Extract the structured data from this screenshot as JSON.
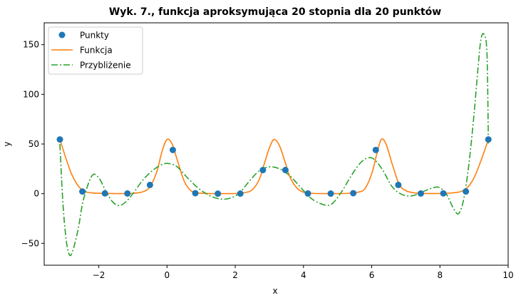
{
  "chart_data": {
    "type": "line",
    "title": "Wyk. 7., funkcja aproksymująca 20 stopnia dla 20 punktów",
    "xlabel": "x",
    "ylabel": "y",
    "xlim": [
      -3.6,
      10.0
    ],
    "ylim": [
      -72,
      172
    ],
    "grid": false,
    "legend_position": "top-left",
    "x_ticks": [
      -2,
      0,
      2,
      4,
      6,
      8,
      10
    ],
    "y_ticks": [
      -50,
      0,
      50,
      100,
      150
    ],
    "x_tick_labels": [
      "−2",
      "0",
      "2",
      "4",
      "6",
      "8",
      "10"
    ],
    "y_tick_labels": [
      "−50",
      "0",
      "50",
      "100",
      "150"
    ],
    "series": [
      {
        "name": "Punkty",
        "kind": "scatter",
        "color": "#1f77b4",
        "x": [
          -3.14,
          -2.48,
          -1.82,
          -1.16,
          -0.5,
          0.17,
          0.83,
          1.49,
          2.15,
          2.81,
          3.47,
          4.13,
          4.8,
          5.46,
          6.12,
          6.78,
          7.44,
          8.1,
          8.76,
          9.42
        ],
        "y": [
          54.6,
          2.2,
          0.3,
          0.2,
          8.8,
          44.0,
          0.5,
          0.0,
          0.1,
          23.8,
          23.8,
          0.2,
          0.1,
          0.5,
          44.0,
          8.8,
          0.2,
          0.3,
          2.2,
          54.6
        ]
      },
      {
        "name": "Funkcja",
        "kind": "line",
        "color": "#ff7f0e",
        "x": [
          -3.14,
          -2.8,
          -2.5,
          -2.2,
          -2.0,
          -1.5,
          -1.0,
          -0.7,
          -0.5,
          -0.3,
          -0.15,
          0.0,
          0.15,
          0.3,
          0.5,
          0.7,
          0.9,
          1.2,
          1.5,
          2.0,
          2.3,
          2.5,
          2.7,
          2.85,
          3.0,
          3.14,
          3.3,
          3.45,
          3.6,
          3.8,
          4.0,
          4.3,
          4.8,
          5.3,
          5.6,
          5.8,
          6.0,
          6.15,
          6.28,
          6.42,
          6.6,
          6.8,
          7.0,
          7.3,
          7.6,
          8.0,
          8.3,
          8.6,
          8.8,
          9.0,
          9.2,
          9.42
        ],
        "y": [
          54.6,
          20,
          4,
          0.8,
          0.4,
          0.1,
          0.3,
          2,
          7,
          22,
          42,
          54.6,
          50,
          34,
          13,
          3,
          0.8,
          0.2,
          0.1,
          0.2,
          1.2,
          4,
          14,
          30,
          46,
          54.6,
          48,
          33,
          17,
          6,
          1.5,
          0.3,
          0.1,
          0.3,
          1.5,
          5,
          20,
          40,
          54.6,
          50,
          30,
          10,
          3,
          0.6,
          0.2,
          0.2,
          0.6,
          2,
          6,
          16,
          33,
          54.6
        ]
      },
      {
        "name": "Przybliżenie",
        "kind": "line",
        "dash": "dashdot",
        "color": "#2ca02c",
        "x": [
          -3.14,
          -3.05,
          -2.95,
          -2.85,
          -2.75,
          -2.6,
          -2.45,
          -2.2,
          -2.0,
          -1.8,
          -1.6,
          -1.4,
          -1.2,
          -1.0,
          -0.7,
          -0.4,
          -0.1,
          0.1,
          0.3,
          0.6,
          0.9,
          1.2,
          1.5,
          1.8,
          2.1,
          2.4,
          2.7,
          3.0,
          3.3,
          3.6,
          3.9,
          4.2,
          4.5,
          4.8,
          5.1,
          5.4,
          5.7,
          6.0,
          6.3,
          6.6,
          6.9,
          7.2,
          7.5,
          7.8,
          8.0,
          8.2,
          8.4,
          8.55,
          8.7,
          8.85,
          9.0,
          9.1,
          9.2,
          9.3,
          9.38,
          9.42
        ],
        "y": [
          50,
          -10,
          -48,
          -62,
          -56,
          -35,
          -6,
          18,
          16,
          3,
          -8,
          -12,
          -8,
          0,
          14,
          24,
          30,
          30,
          27,
          16,
          6,
          -1,
          -5,
          -5,
          0,
          12,
          23,
          27,
          25,
          18,
          7,
          -4,
          -10,
          -11,
          1,
          18,
          32,
          36,
          25,
          7,
          -1,
          -2,
          2,
          6,
          6,
          -1,
          -15,
          -20,
          -5,
          30,
          80,
          120,
          155,
          160,
          140,
          50
        ]
      }
    ]
  }
}
